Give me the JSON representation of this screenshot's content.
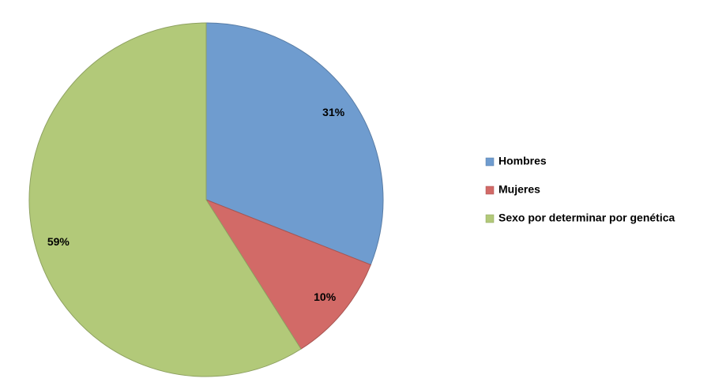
{
  "chart_data": {
    "type": "pie",
    "categories": [
      "Hombres",
      "Mujeres",
      "Sexo por determinar por genética"
    ],
    "values": [
      31,
      10,
      59
    ],
    "value_labels": [
      "31%",
      "10%",
      "59%"
    ],
    "colors": [
      "#6f9ccf",
      "#d26a67",
      "#b2c979"
    ],
    "legend": "right"
  }
}
